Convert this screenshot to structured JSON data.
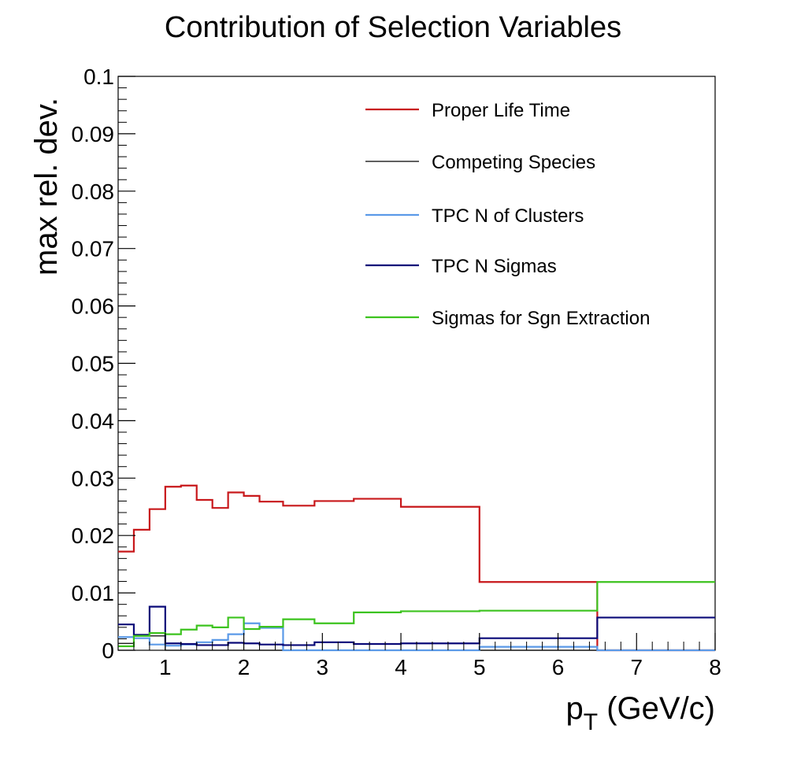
{
  "chart_data": {
    "type": "line",
    "title": "Contribution of Selection Variables",
    "xlabel": "p",
    "xlabel_subscript": "T",
    "xlabel_suffix": " (GeV/c)",
    "ylabel": "max rel. dev.",
    "xlim": [
      0.4,
      8.0
    ],
    "ylim": [
      0,
      0.1
    ],
    "grid": false,
    "legend_position": "top-right",
    "x_ticks": [
      "1",
      "2",
      "3",
      "4",
      "5",
      "6",
      "7",
      "8"
    ],
    "y_ticks": [
      "0",
      "0.01",
      "0.02",
      "0.03",
      "0.04",
      "0.05",
      "0.06",
      "0.07",
      "0.08",
      "0.09",
      "0.1"
    ],
    "bin_edges": [
      0.4,
      0.6,
      0.8,
      1.0,
      1.2,
      1.4,
      1.6,
      1.8,
      2.0,
      2.2,
      2.5,
      2.9,
      3.4,
      4.0,
      5.0,
      6.5,
      8.0
    ],
    "series": [
      {
        "name": "Proper Life Time",
        "color": "#c8181b",
        "values": [
          0.0172,
          0.021,
          0.0246,
          0.0285,
          0.0287,
          0.0262,
          0.0248,
          0.0275,
          0.0269,
          0.0259,
          0.0252,
          0.026,
          0.0264,
          0.025,
          0.0119,
          0.0
        ]
      },
      {
        "name": "Competing Species",
        "color": "#000000",
        "values": [
          0.0012,
          0.0025,
          0.0025,
          0.0,
          0.0,
          0.0,
          0.0,
          0.0,
          0.0,
          0.0,
          0.0,
          0.0,
          0.0,
          0.0,
          0.0,
          0.0
        ]
      },
      {
        "name": "TPC N of Clusters",
        "color": "#5b9ae8",
        "values": [
          0.0023,
          0.0021,
          0.001,
          0.0008,
          0.001,
          0.0014,
          0.0018,
          0.0028,
          0.0047,
          0.0039,
          0.0,
          0.0,
          0.0,
          0.0,
          0.0006,
          0.0
        ]
      },
      {
        "name": "TPC N Sigmas",
        "color": "#0a0a78",
        "values": [
          0.0045,
          0.0027,
          0.0076,
          0.0012,
          0.0011,
          0.0009,
          0.0009,
          0.0013,
          0.0012,
          0.001,
          0.0009,
          0.0014,
          0.0011,
          0.0012,
          0.0021,
          0.0057
        ]
      },
      {
        "name": "Sigmas for Sgn Extraction",
        "color": "#3cc31e",
        "values": [
          0.0007,
          0.0025,
          0.003,
          0.0028,
          0.0036,
          0.0043,
          0.004,
          0.0057,
          0.0037,
          0.0041,
          0.0054,
          0.0047,
          0.0066,
          0.0068,
          0.0069,
          0.0119
        ]
      }
    ]
  }
}
